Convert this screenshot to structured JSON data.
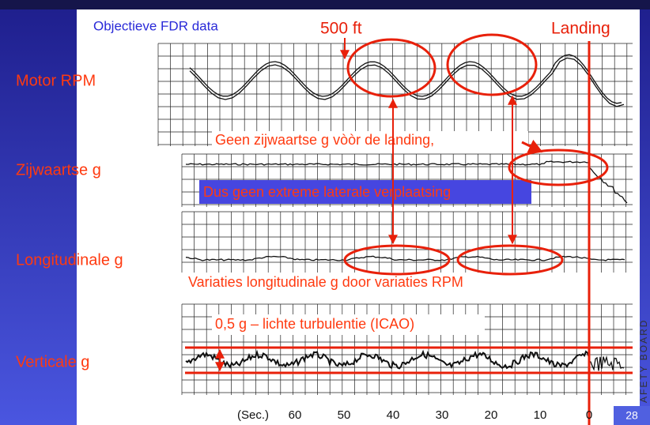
{
  "header": {
    "title": "Objectieve FDR data"
  },
  "markers": {
    "altitude": "500 ft",
    "landing": "Landing"
  },
  "channels": [
    "Motor RPM",
    "Zijwaartse g",
    "Longitudinale g",
    "Verticale g"
  ],
  "annotations": [
    "Geen zijwaartse g vòòr de landing,",
    "Dus geen extreme laterale verplaatsing",
    "Variaties longitudinale g door variaties RPM",
    "0,5 g – lichte turbulentie (ICAO)"
  ],
  "time_axis": {
    "label": "(Sec.)",
    "ticks": [
      60,
      50,
      40,
      30,
      20,
      10,
      0
    ]
  },
  "watermark": "AFETY BOARD",
  "page_number": 28
}
